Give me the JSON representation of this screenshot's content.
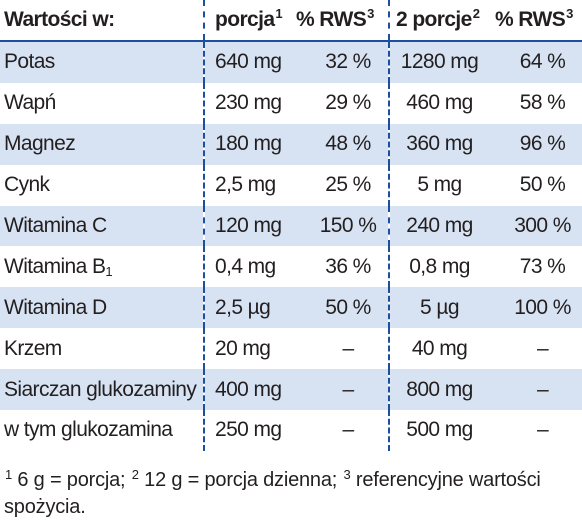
{
  "header": {
    "title": "Wartości w:",
    "col_portion": "porcja",
    "col_portion_sup": "1",
    "col_rws": "% RWS",
    "col_rws_sup": "3",
    "col_two_portions": "2 porcje",
    "col_two_portions_sup": "2",
    "col_rws2": "% RWS",
    "col_rws2_sup": "3"
  },
  "rows": [
    {
      "name": "Potas",
      "dose": "640 mg",
      "rws": "32 %",
      "dose2": "1280 mg",
      "rws2": "64 %"
    },
    {
      "name": "Wapń",
      "dose": "230 mg",
      "rws": "29 %",
      "dose2": "460 mg",
      "rws2": "58 %"
    },
    {
      "name": "Magnez",
      "dose": "180 mg",
      "rws": "48 %",
      "dose2": "360 mg",
      "rws2": "96 %"
    },
    {
      "name": "Cynk",
      "dose": "2,5 mg",
      "rws": "25 %",
      "dose2": "5 mg",
      "rws2": "50 %"
    },
    {
      "name": "Witamina C",
      "dose": "120 mg",
      "rws": "150 %",
      "dose2": "240 mg",
      "rws2": "300 %"
    },
    {
      "name": "Witamina B",
      "name_sub": "1",
      "dose": "0,4 mg",
      "rws": "36 %",
      "dose2": "0,8 mg",
      "rws2": "73 %"
    },
    {
      "name": "Witamina D",
      "dose": "2,5 µg",
      "rws": "50 %",
      "dose2": "5 µg",
      "rws2": "100 %"
    },
    {
      "name": "Krzem",
      "dose": "20 mg",
      "rws": "–",
      "dose2": "40 mg",
      "rws2": "–"
    },
    {
      "name": "Siarczan glukozaminy",
      "dose": "400 mg",
      "rws": "–",
      "dose2": "800 mg",
      "rws2": "–"
    },
    {
      "name": "w tym glukozamina",
      "dose": "250 mg",
      "rws": "–",
      "dose2": "500 mg",
      "rws2": "–"
    }
  ],
  "footnote": {
    "n1": "1",
    "t1": " 6 g = porcja; ",
    "n2": "2",
    "t2": " 12 g = porcja dzienna; ",
    "n3": "3",
    "t3": " referencyjne wartości spożycia."
  },
  "colors": {
    "row_shade": "#d7e3f3",
    "divider": "#1d4f9c",
    "text": "#231f20"
  }
}
